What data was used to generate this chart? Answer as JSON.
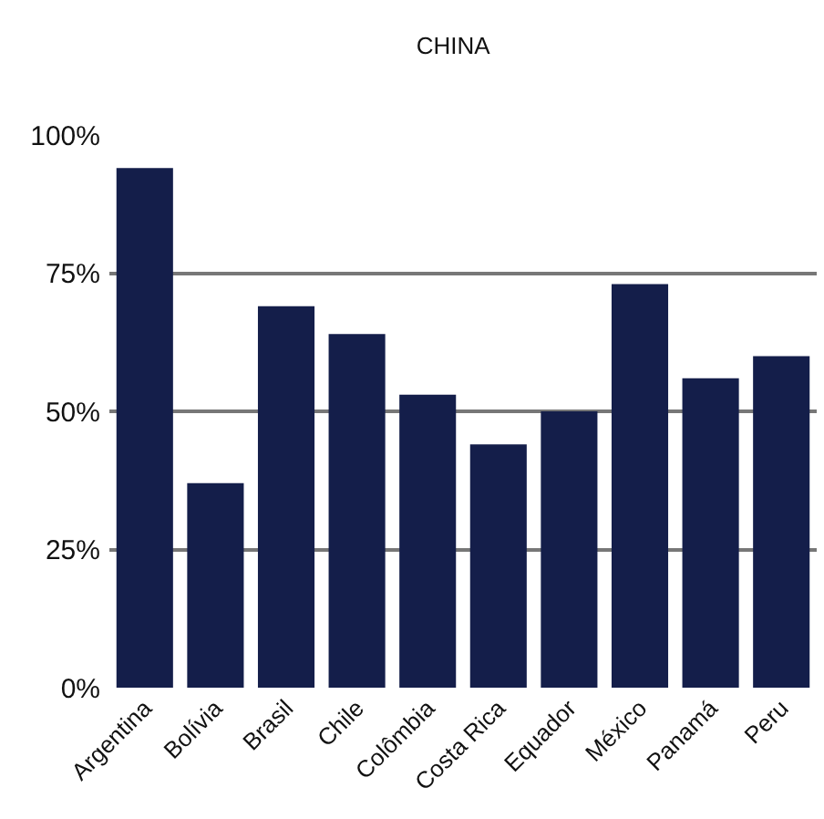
{
  "chart_data": {
    "type": "bar",
    "title": "CHINA",
    "categories": [
      "Argentina",
      "Bolívia",
      "Brasil",
      "Chile",
      "Colômbia",
      "Costa Rica",
      "Equador",
      "México",
      "Panamá",
      "Peru"
    ],
    "values": [
      94,
      37,
      69,
      64,
      53,
      44,
      50,
      73,
      56,
      60
    ],
    "color": "#141e4a",
    "ylim": [
      0,
      100
    ],
    "yticks": [
      {
        "value": 0,
        "label": "0%"
      },
      {
        "value": 25,
        "label": "25%"
      },
      {
        "value": 50,
        "label": "50%"
      },
      {
        "value": 75,
        "label": "75%"
      },
      {
        "value": 100,
        "label": "100%"
      }
    ],
    "grid": "y"
  }
}
